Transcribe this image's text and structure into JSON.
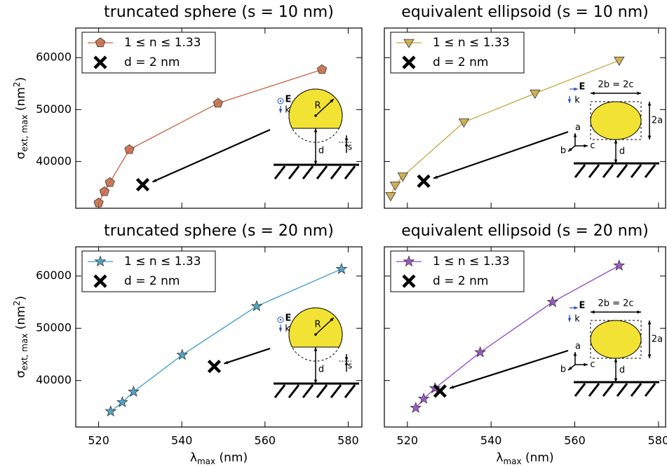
{
  "chart_data": [
    {
      "type": "line",
      "title": "truncated sphere (s = 10 nm)",
      "ylabel": [
        "σ",
        "ext, max",
        " (nm",
        "2",
        ")"
      ],
      "xlim": [
        514.5,
        583.3
      ],
      "ylim": [
        31000,
        65700
      ],
      "xticks": [
        520,
        540,
        560,
        580
      ],
      "yticks": [
        40000,
        50000,
        60000
      ],
      "show_xtick_labels": false,
      "show_ytick_labels": true,
      "legend": "upper left",
      "inset": "sphere",
      "inset_labels": [
        "E",
        "k",
        "R",
        "s",
        "d"
      ],
      "series": [
        {
          "name": "1 ≤ n ≤ 1.33",
          "color": "#c4643e",
          "marker": "pentagon",
          "x": [
            520.0,
            521.4,
            522.7,
            527.4,
            548.7,
            573.7
          ],
          "values": [
            32030,
            34190,
            35950,
            42300,
            51220,
            57700
          ]
        },
        {
          "name": "d = 2 nm",
          "color": "#000000",
          "marker": "x",
          "x": [
            530.6
          ],
          "values": [
            35540
          ]
        }
      ]
    },
    {
      "type": "line",
      "title": "equivalent ellipsoid (s = 10 nm)",
      "xlim": [
        514.5,
        581.7
      ],
      "ylim": [
        31000,
        65700
      ],
      "xticks": [
        520,
        540,
        560,
        580
      ],
      "yticks": [
        40000,
        50000,
        60000
      ],
      "show_xtick_labels": false,
      "show_ytick_labels": false,
      "legend": "upper left",
      "inset": "ellipsoid",
      "inset_labels": [
        "E",
        "k",
        "2b = 2c",
        "2a",
        "a",
        "b",
        "c",
        "d"
      ],
      "series": [
        {
          "name": "1 ≤ n ≤ 1.33",
          "color": "#c9a43e",
          "marker": "triangle_down",
          "x": [
            516.0,
            517.1,
            518.9,
            533.5,
            550.5,
            570.6
          ],
          "values": [
            33380,
            35410,
            37160,
            47570,
            53110,
            59460
          ]
        },
        {
          "name": "d = 2 nm",
          "color": "#000000",
          "marker": "x",
          "x": [
            523.9
          ],
          "values": [
            36220
          ]
        }
      ]
    },
    {
      "type": "line",
      "title": "truncated sphere (s = 20 nm)",
      "ylabel": [
        "σ",
        "ext, max",
        " (nm",
        "2",
        ")"
      ],
      "xlabel": [
        "λ",
        "max",
        " (nm)"
      ],
      "xlim": [
        514.5,
        583.3
      ],
      "ylim": [
        31100,
        65600
      ],
      "xticks": [
        520,
        540,
        560,
        580
      ],
      "yticks": [
        40000,
        50000,
        60000
      ],
      "show_xtick_labels": true,
      "show_ytick_labels": true,
      "legend": "upper left",
      "inset": "sphere",
      "inset_labels": [
        "E",
        "k",
        "R",
        "s",
        "d"
      ],
      "series": [
        {
          "name": "1 ≤ n ≤ 1.33",
          "color": "#3c9cc6",
          "marker": "star",
          "x": [
            522.9,
            525.7,
            528.4,
            540.1,
            558.0,
            578.4
          ],
          "values": [
            34090,
            35840,
            37850,
            44900,
            54230,
            61340
          ]
        },
        {
          "name": "d = 2 nm",
          "color": "#000000",
          "marker": "x",
          "x": [
            547.8
          ],
          "values": [
            42700
          ]
        }
      ]
    },
    {
      "type": "line",
      "title": "equivalent ellipsoid (s = 20 nm)",
      "xlabel": [
        "λ",
        "max",
        " (nm)"
      ],
      "xlim": [
        514.5,
        581.7
      ],
      "ylim": [
        31100,
        65600
      ],
      "xticks": [
        520,
        540,
        560,
        580
      ],
      "yticks": [
        40000,
        50000,
        60000
      ],
      "show_xtick_labels": true,
      "show_ytick_labels": false,
      "legend": "upper left",
      "inset": "ellipsoid",
      "inset_labels": [
        "E",
        "k",
        "2b = 2c",
        "2a",
        "a",
        "b",
        "c",
        "d"
      ],
      "series": [
        {
          "name": "1 ≤ n ≤ 1.33",
          "color": "#9244c2",
          "marker": "star",
          "x": [
            522.0,
            523.9,
            526.6,
            537.4,
            554.7,
            570.6
          ],
          "values": [
            34770,
            36510,
            38520,
            45400,
            55030,
            62010
          ]
        },
        {
          "name": "d = 2 nm",
          "color": "#000000",
          "marker": "x",
          "x": [
            527.8
          ],
          "values": [
            37990
          ]
        }
      ]
    }
  ]
}
